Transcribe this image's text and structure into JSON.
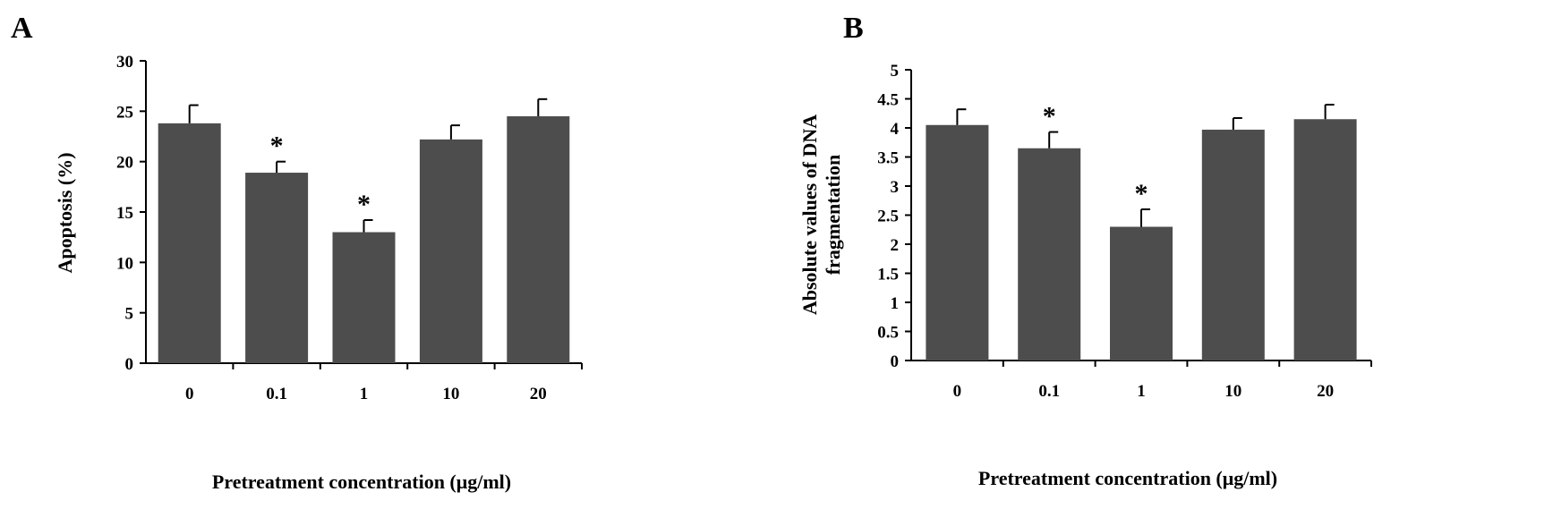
{
  "chart_data": [
    {
      "panel_label": "A",
      "type": "bar",
      "categories": [
        "0",
        "0.1",
        "1",
        "10",
        "20"
      ],
      "values": [
        23.8,
        18.9,
        13.0,
        22.2,
        24.5
      ],
      "errors": [
        1.8,
        1.1,
        1.2,
        1.4,
        1.7
      ],
      "significance": [
        "",
        "*",
        "*",
        "",
        ""
      ],
      "ylim": [
        0,
        30
      ],
      "yticks": [
        "0",
        "5",
        "10",
        "15",
        "20",
        "25",
        "30"
      ],
      "xlabel": "Pretreatment concentration (μg/ml)",
      "ylabel": [
        "Apoptosis (%)"
      ],
      "grid": false,
      "bar_color": "#4d4d4d"
    },
    {
      "panel_label": "B",
      "type": "bar",
      "categories": [
        "0",
        "0.1",
        "1",
        "10",
        "20"
      ],
      "values": [
        4.05,
        3.65,
        2.3,
        3.97,
        4.15
      ],
      "errors": [
        0.27,
        0.28,
        0.3,
        0.2,
        0.25
      ],
      "significance": [
        "",
        "*",
        "*",
        "",
        ""
      ],
      "ylim": [
        0,
        5
      ],
      "yticks": [
        "0",
        "0.5",
        "1",
        "1.5",
        "2",
        "2.5",
        "3",
        "3.5",
        "4",
        "4.5",
        "5"
      ],
      "xlabel": "Pretreatment concentration (μg/ml)",
      "ylabel": [
        "Absolute values of DNA",
        "fragmentation"
      ],
      "grid": false,
      "bar_color": "#4d4d4d"
    }
  ]
}
